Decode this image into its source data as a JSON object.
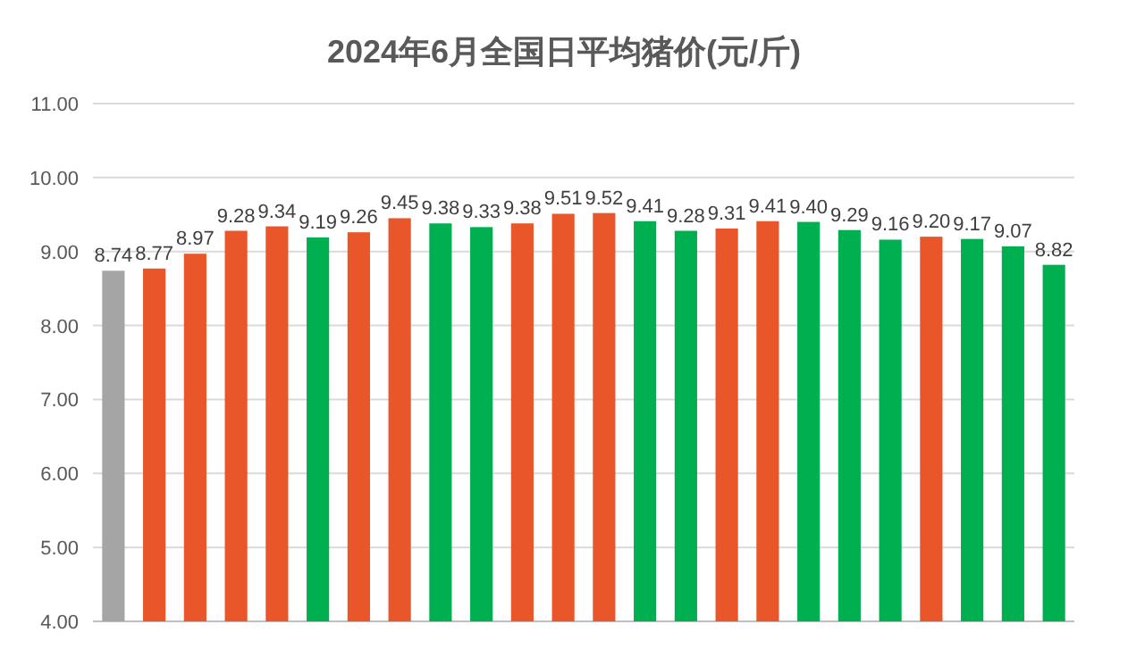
{
  "chart_data": {
    "type": "bar",
    "title": "2024年6月全国日平均猪价(元/斤)",
    "categories": [
      null,
      null,
      null,
      null,
      null,
      null,
      null,
      null,
      null,
      null,
      null,
      null,
      null,
      null,
      null,
      null,
      null,
      null,
      null,
      null,
      null,
      null,
      null,
      null
    ],
    "values": [
      8.74,
      8.77,
      8.97,
      9.28,
      9.34,
      9.19,
      9.26,
      9.45,
      9.38,
      9.33,
      9.38,
      9.51,
      9.52,
      9.41,
      9.28,
      9.31,
      9.41,
      9.4,
      9.29,
      9.16,
      9.2,
      9.17,
      9.07,
      8.82
    ],
    "value_labels": [
      "8.74",
      "8.77",
      "8.97",
      "9.28",
      "9.34",
      "9.19",
      "9.26",
      "9.45",
      "9.38",
      "9.33",
      "9.38",
      "9.51",
      "9.52",
      "9.41",
      "9.28",
      "9.31",
      "9.41",
      "9.40",
      "9.29",
      "9.16",
      "9.20",
      "9.17",
      "9.07",
      "8.82"
    ],
    "colors": [
      "#a5a5a5",
      "#e8562a",
      "#e8562a",
      "#e8562a",
      "#e8562a",
      "#00b050",
      "#e8562a",
      "#e8562a",
      "#00b050",
      "#00b050",
      "#e8562a",
      "#e8562a",
      "#e8562a",
      "#00b050",
      "#00b050",
      "#e8562a",
      "#e8562a",
      "#00b050",
      "#00b050",
      "#00b050",
      "#e8562a",
      "#00b050",
      "#00b050",
      "#00b050"
    ],
    "ylim": [
      4,
      11
    ],
    "yticks": [
      {
        "value": 4,
        "label": "4.00"
      },
      {
        "value": 5,
        "label": "5.00"
      },
      {
        "value": 6,
        "label": "6.00"
      },
      {
        "value": 7,
        "label": "7.00"
      },
      {
        "value": 8,
        "label": "8.00"
      },
      {
        "value": 9,
        "label": "9.00"
      },
      {
        "value": 10,
        "label": "10.00"
      },
      {
        "value": 11,
        "label": "11.00"
      }
    ],
    "grid": "y"
  }
}
